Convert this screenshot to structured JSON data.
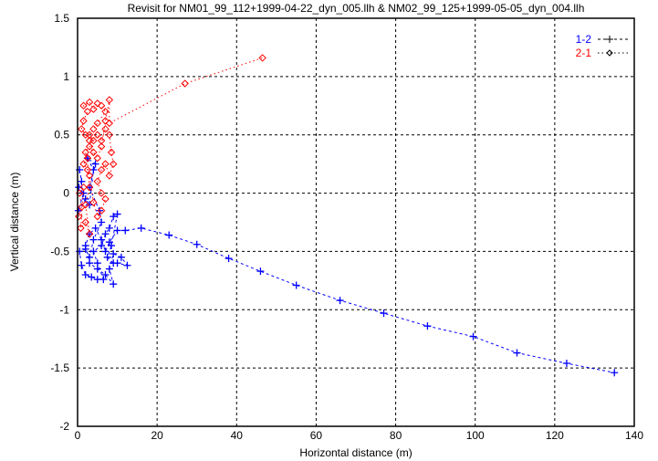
{
  "chart_data": {
    "type": "line",
    "title": "Revisit for NM01_99_112+1999-04-22_dyn_005.llh & NM02_99_125+1999-05-05_dyn_004.llh",
    "xlabel": "Horizontal distance (m)",
    "ylabel": "Vertical distance (m)",
    "xlim": [
      0,
      140
    ],
    "ylim": [
      -2,
      1.5
    ],
    "xticks": [
      "0",
      "20",
      "40",
      "60",
      "80",
      "100",
      "120",
      "140"
    ],
    "yticks": [
      "-2",
      "-1.5",
      "-1",
      "-0.5",
      "0",
      "0.5",
      "1",
      "1.5"
    ],
    "grid": true,
    "legend_position": "top-right",
    "series": [
      {
        "name": "1-2",
        "color": "#0000ff",
        "marker": "plus",
        "points": [
          [
            0.5,
            0.2
          ],
          [
            1,
            0.1
          ],
          [
            0.3,
            0.05
          ],
          [
            1.5,
            0.0
          ],
          [
            0.2,
            -0.15
          ],
          [
            2,
            -0.05
          ],
          [
            3,
            -0.1
          ],
          [
            4,
            0.2
          ],
          [
            2.5,
            0.3
          ],
          [
            4.5,
            0.25
          ],
          [
            3,
            0.05
          ],
          [
            5.5,
            -0.15
          ],
          [
            6,
            -0.25
          ],
          [
            4,
            -0.4
          ],
          [
            3,
            -0.55
          ],
          [
            2,
            -0.48
          ],
          [
            0.5,
            -0.5
          ],
          [
            1,
            -0.62
          ],
          [
            2,
            -0.7
          ],
          [
            3.5,
            -0.72
          ],
          [
            5,
            -0.74
          ],
          [
            6.5,
            -0.74
          ],
          [
            5,
            -0.6
          ],
          [
            4,
            -0.5
          ],
          [
            6,
            -0.45
          ],
          [
            7,
            -0.35
          ],
          [
            8,
            -0.3
          ],
          [
            9,
            -0.2
          ],
          [
            10,
            -0.18
          ],
          [
            8.5,
            -0.45
          ],
          [
            7.5,
            -0.55
          ],
          [
            9,
            -0.6
          ],
          [
            10,
            -0.6
          ],
          [
            12.5,
            -0.62
          ],
          [
            11,
            -0.55
          ],
          [
            9,
            -0.52
          ],
          [
            8,
            -0.65
          ],
          [
            9,
            -0.78
          ],
          [
            7,
            -0.7
          ],
          [
            5,
            -0.65
          ],
          [
            3,
            -0.6
          ],
          [
            2,
            -0.45
          ],
          [
            3,
            -0.35
          ],
          [
            4.5,
            -0.3
          ],
          [
            6,
            -0.4
          ],
          [
            7,
            -0.5
          ],
          [
            8,
            -0.42
          ],
          [
            10,
            -0.32
          ],
          [
            12,
            -0.32
          ],
          [
            16,
            -0.3
          ],
          [
            23,
            -0.36
          ],
          [
            30,
            -0.44
          ],
          [
            38,
            -0.56
          ],
          [
            46,
            -0.67
          ],
          [
            55,
            -0.79
          ],
          [
            66,
            -0.92
          ],
          [
            77,
            -1.03
          ],
          [
            88,
            -1.14
          ],
          [
            99.5,
            -1.23
          ],
          [
            110.5,
            -1.37
          ],
          [
            123,
            -1.46
          ],
          [
            135,
            -1.54
          ]
        ]
      },
      {
        "name": "2-1",
        "color": "#ff0000",
        "marker": "diamond",
        "points": [
          [
            0.3,
            -0.2
          ],
          [
            1,
            -0.12
          ],
          [
            0.5,
            0.0
          ],
          [
            1.5,
            0.05
          ],
          [
            0.8,
            -0.3
          ],
          [
            2,
            -0.25
          ],
          [
            3,
            -0.35
          ],
          [
            2,
            -0.1
          ],
          [
            3,
            0.05
          ],
          [
            2.5,
            0.2
          ],
          [
            1.5,
            0.25
          ],
          [
            2.5,
            0.3
          ],
          [
            4,
            0.35
          ],
          [
            3,
            0.45
          ],
          [
            2,
            0.5
          ],
          [
            1,
            0.55
          ],
          [
            1.5,
            0.62
          ],
          [
            2.5,
            0.7
          ],
          [
            1.5,
            0.75
          ],
          [
            3,
            0.78
          ],
          [
            4,
            0.72
          ],
          [
            5,
            0.77
          ],
          [
            6,
            0.75
          ],
          [
            7,
            0.7
          ],
          [
            5,
            0.6
          ],
          [
            4,
            0.55
          ],
          [
            3,
            0.5
          ],
          [
            4,
            0.45
          ],
          [
            5,
            0.5
          ],
          [
            6,
            0.45
          ],
          [
            7,
            0.55
          ],
          [
            8,
            0.5
          ],
          [
            8.5,
            0.35
          ],
          [
            9,
            0.25
          ],
          [
            8,
            0.15
          ],
          [
            7,
            0.25
          ],
          [
            6,
            0.2
          ],
          [
            5,
            0.1
          ],
          [
            6,
            0.0
          ],
          [
            7,
            -0.05
          ],
          [
            6,
            -0.15
          ],
          [
            5,
            -0.2
          ],
          [
            4,
            -0.08
          ],
          [
            3,
            0.15
          ],
          [
            2,
            0.35
          ],
          [
            3,
            0.4
          ],
          [
            5,
            0.3
          ],
          [
            6,
            0.4
          ],
          [
            7,
            0.62
          ],
          [
            8,
            0.8
          ],
          [
            8,
            0.6
          ],
          [
            27,
            0.94
          ],
          [
            46.5,
            1.16
          ]
        ]
      }
    ]
  }
}
